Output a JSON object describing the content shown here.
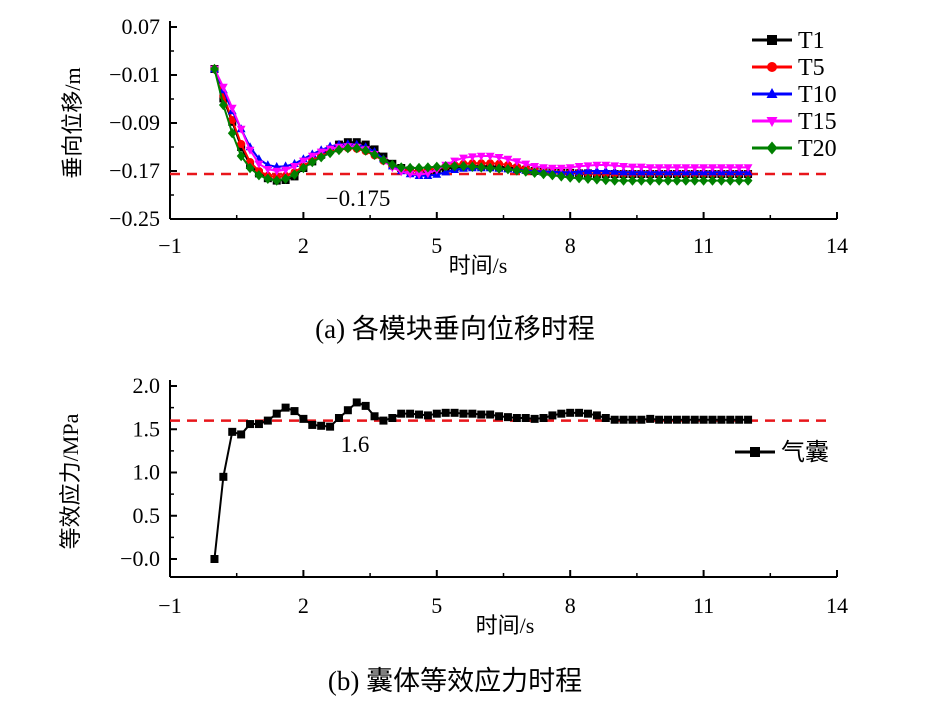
{
  "chart_data": [
    {
      "type": "line",
      "caption": "(a)  各模块垂向位移时程",
      "xlabel": "时间/s",
      "ylabel": "垂向位移/m",
      "xlim": [
        -1,
        14
      ],
      "ylim": [
        -0.25,
        0.07
      ],
      "xticks": [
        -1,
        2,
        5,
        8,
        11,
        14
      ],
      "yticks": [
        0.07,
        -0.01,
        -0.09,
        -0.17,
        -0.25
      ],
      "ytick_labels": [
        "0.07",
        "−0.01",
        "−0.09",
        "−0.17",
        "−0.25"
      ],
      "reference_line": {
        "value": -0.175,
        "label": "−0.175",
        "color": "#e8161b"
      },
      "legend_position": "top-right",
      "x_start": 0,
      "x_step": 0.2,
      "series": [
        {
          "name": "T1",
          "color": "#000000",
          "marker": "square",
          "values": [
            0.0,
            -0.049,
            -0.088,
            -0.13,
            -0.16,
            -0.174,
            -0.182,
            -0.186,
            -0.185,
            -0.179,
            -0.165,
            -0.154,
            -0.143,
            -0.134,
            -0.126,
            -0.122,
            -0.122,
            -0.126,
            -0.134,
            -0.146,
            -0.158,
            -0.165,
            -0.169,
            -0.171,
            -0.171,
            -0.169,
            -0.166,
            -0.164,
            -0.163,
            -0.162,
            -0.162,
            -0.162,
            -0.163,
            -0.164,
            -0.166,
            -0.168,
            -0.17,
            -0.171,
            -0.172,
            -0.173,
            -0.173,
            -0.174,
            -0.174,
            -0.175,
            -0.175,
            -0.175,
            -0.175,
            -0.175,
            -0.175,
            -0.175,
            -0.175,
            -0.175,
            -0.175,
            -0.175,
            -0.175,
            -0.175,
            -0.175,
            -0.175,
            -0.175,
            -0.175,
            -0.175
          ]
        },
        {
          "name": "T5",
          "color": "#ff0000",
          "marker": "circle",
          "values": [
            0.0,
            -0.045,
            -0.085,
            -0.125,
            -0.155,
            -0.17,
            -0.178,
            -0.18,
            -0.178,
            -0.172,
            -0.162,
            -0.152,
            -0.144,
            -0.138,
            -0.134,
            -0.132,
            -0.133,
            -0.137,
            -0.144,
            -0.153,
            -0.162,
            -0.167,
            -0.17,
            -0.17,
            -0.168,
            -0.165,
            -0.162,
            -0.16,
            -0.158,
            -0.157,
            -0.157,
            -0.157,
            -0.158,
            -0.16,
            -0.163,
            -0.166,
            -0.169,
            -0.171,
            -0.172,
            -0.173,
            -0.173,
            -0.173,
            -0.174,
            -0.174,
            -0.174,
            -0.174,
            -0.174,
            -0.174,
            -0.174,
            -0.174,
            -0.174,
            -0.174,
            -0.174,
            -0.174,
            -0.174,
            -0.174,
            -0.174,
            -0.174,
            -0.174,
            -0.174,
            -0.174
          ]
        },
        {
          "name": "T10",
          "color": "#0000ff",
          "marker": "triangle-up",
          "values": [
            0.0,
            -0.035,
            -0.07,
            -0.1,
            -0.13,
            -0.15,
            -0.16,
            -0.163,
            -0.162,
            -0.158,
            -0.15,
            -0.142,
            -0.135,
            -0.129,
            -0.126,
            -0.125,
            -0.126,
            -0.13,
            -0.138,
            -0.15,
            -0.162,
            -0.17,
            -0.175,
            -0.178,
            -0.178,
            -0.176,
            -0.172,
            -0.168,
            -0.166,
            -0.165,
            -0.165,
            -0.165,
            -0.166,
            -0.167,
            -0.168,
            -0.169,
            -0.17,
            -0.171,
            -0.171,
            -0.172,
            -0.172,
            -0.171,
            -0.17,
            -0.17,
            -0.17,
            -0.171,
            -0.172,
            -0.172,
            -0.172,
            -0.172,
            -0.172,
            -0.172,
            -0.172,
            -0.172,
            -0.172,
            -0.172,
            -0.172,
            -0.172,
            -0.172,
            -0.172,
            -0.172
          ]
        },
        {
          "name": "T15",
          "color": "#ff00ff",
          "marker": "triangle-down",
          "values": [
            0.0,
            -0.03,
            -0.065,
            -0.1,
            -0.135,
            -0.158,
            -0.167,
            -0.17,
            -0.168,
            -0.162,
            -0.153,
            -0.145,
            -0.138,
            -0.133,
            -0.13,
            -0.129,
            -0.13,
            -0.134,
            -0.142,
            -0.153,
            -0.164,
            -0.171,
            -0.175,
            -0.176,
            -0.174,
            -0.168,
            -0.16,
            -0.153,
            -0.148,
            -0.146,
            -0.145,
            -0.145,
            -0.147,
            -0.15,
            -0.154,
            -0.158,
            -0.162,
            -0.164,
            -0.165,
            -0.165,
            -0.164,
            -0.162,
            -0.161,
            -0.16,
            -0.16,
            -0.161,
            -0.162,
            -0.163,
            -0.163,
            -0.164,
            -0.164,
            -0.164,
            -0.164,
            -0.164,
            -0.164,
            -0.164,
            -0.164,
            -0.164,
            -0.164,
            -0.164,
            -0.164
          ]
        },
        {
          "name": "T20",
          "color": "#008000",
          "marker": "diamond",
          "values": [
            0.0,
            -0.06,
            -0.107,
            -0.145,
            -0.165,
            -0.177,
            -0.183,
            -0.186,
            -0.183,
            -0.176,
            -0.165,
            -0.155,
            -0.147,
            -0.14,
            -0.135,
            -0.132,
            -0.132,
            -0.136,
            -0.143,
            -0.152,
            -0.16,
            -0.164,
            -0.165,
            -0.165,
            -0.164,
            -0.163,
            -0.162,
            -0.162,
            -0.162,
            -0.163,
            -0.164,
            -0.165,
            -0.166,
            -0.167,
            -0.169,
            -0.171,
            -0.173,
            -0.175,
            -0.177,
            -0.179,
            -0.181,
            -0.182,
            -0.183,
            -0.184,
            -0.185,
            -0.186,
            -0.186,
            -0.186,
            -0.186,
            -0.186,
            -0.186,
            -0.186,
            -0.186,
            -0.186,
            -0.186,
            -0.186,
            -0.186,
            -0.186,
            -0.186,
            -0.186,
            -0.186
          ]
        }
      ]
    },
    {
      "type": "line",
      "caption": "(b)  囊体等效应力时程",
      "xlabel": "时间/s",
      "ylabel": "等效应力/MPa",
      "xlim": [
        -1,
        14
      ],
      "ylim": [
        -0.2,
        2.0
      ],
      "xticks": [
        -1,
        2,
        5,
        8,
        11,
        14
      ],
      "yticks": [
        2.0,
        1.5,
        1.0,
        0.5,
        0.0
      ],
      "ytick_labels": [
        "2.0",
        "1.5",
        "1.0",
        "0.5",
        "−0.0"
      ],
      "reference_line": {
        "value": 1.6,
        "label": "1.6",
        "color": "#e8161b"
      },
      "legend_position": "right",
      "x_start": 0,
      "x_step": 0.2,
      "series": [
        {
          "name": "气囊",
          "color": "#000000",
          "marker": "square",
          "values": [
            0,
            0.95,
            1.47,
            1.44,
            1.56,
            1.56,
            1.6,
            1.68,
            1.75,
            1.71,
            1.62,
            1.55,
            1.54,
            1.53,
            1.63,
            1.72,
            1.81,
            1.77,
            1.65,
            1.6,
            1.63,
            1.68,
            1.68,
            1.67,
            1.66,
            1.68,
            1.69,
            1.69,
            1.68,
            1.68,
            1.67,
            1.67,
            1.65,
            1.64,
            1.63,
            1.63,
            1.62,
            1.63,
            1.66,
            1.68,
            1.69,
            1.69,
            1.68,
            1.66,
            1.63,
            1.61,
            1.61,
            1.61,
            1.61,
            1.62,
            1.61,
            1.61,
            1.61,
            1.61,
            1.61,
            1.61,
            1.61,
            1.61,
            1.61,
            1.61,
            1.61
          ]
        }
      ]
    }
  ]
}
